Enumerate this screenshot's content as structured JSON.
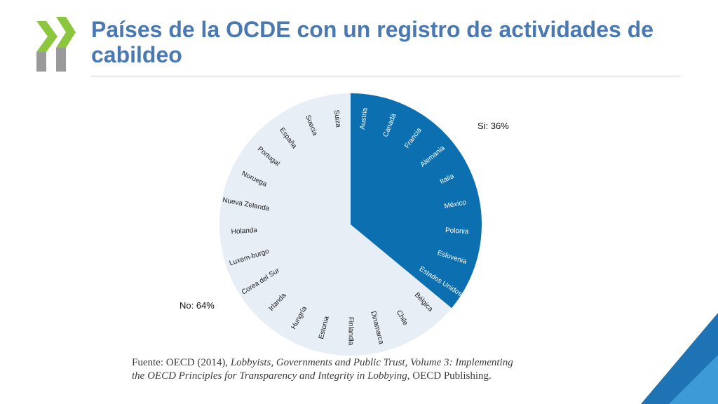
{
  "slide": {
    "title": "Países de la OCDE con un registro de actividades de cabildeo",
    "source_prefix": "Fuente: OECD (2014), ",
    "source_italic": "Lobbyists, Governments and Public Trust, Volume 3: Implementing the OECD Principles for Transparency and Integrity in Lobbying",
    "source_suffix": ", OECD Publishing."
  },
  "colors": {
    "title": "#4a78b0",
    "yes": "#0b6fb0",
    "no": "#e8eef6",
    "logo_green": "#8cc63f",
    "logo_gray": "#9a9a9a",
    "corner_dark": "#1e73b4",
    "corner_light": "#3d9ad6"
  },
  "chart_data": {
    "type": "pie",
    "title": "",
    "slices": [
      {
        "name": "Si",
        "label": "Si: 36%",
        "value": 36
      },
      {
        "name": "No",
        "label": "No: 64%",
        "value": 64
      }
    ],
    "countries_yes": [
      "Austria",
      "Canadá",
      "Francia",
      "Alemania",
      "Italia",
      "México",
      "Polonia",
      "Eslovenia",
      "Estados Unidos"
    ],
    "countries_no": [
      "Bélgica",
      "Chile",
      "Dinamarca",
      "Finlandia",
      "Estonia",
      "Hungría",
      "Irlanda",
      "Corea del Sur",
      "Luxem-burgo",
      "Holanda",
      "Nueva Zelanda",
      "Noruega",
      "Portugal",
      "España",
      "Suecia",
      "Suiza"
    ]
  }
}
